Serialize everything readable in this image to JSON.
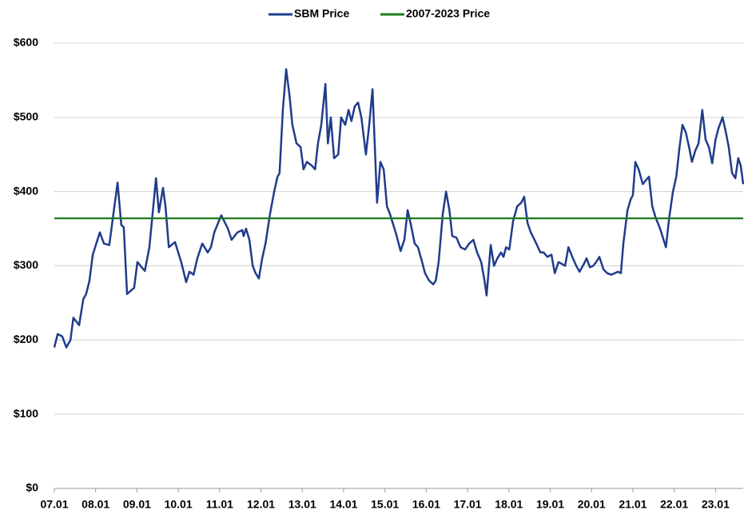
{
  "chart_data": {
    "type": "line",
    "series": [
      {
        "name": "SBM Price",
        "color": "#1f3c8c",
        "x": [
          2007.0,
          2007.08,
          2007.19,
          2007.29,
          2007.39,
          2007.46,
          2007.6,
          2007.7,
          2007.77,
          2007.85,
          2007.93,
          2008.1,
          2008.2,
          2008.33,
          2008.43,
          2008.53,
          2008.62,
          2008.68,
          2008.76,
          2008.88,
          2008.93,
          2009.01,
          2009.19,
          2009.3,
          2009.46,
          2009.53,
          2009.63,
          2009.69,
          2009.77,
          2009.92,
          2010.07,
          2010.19,
          2010.27,
          2010.37,
          2010.46,
          2010.58,
          2010.71,
          2010.79,
          2010.87,
          2011.04,
          2011.2,
          2011.29,
          2011.43,
          2011.55,
          2011.58,
          2011.64,
          2011.72,
          2011.8,
          2011.87,
          2011.95,
          2012.03,
          2012.11,
          2012.22,
          2012.32,
          2012.4,
          2012.45,
          2012.53,
          2012.61,
          2012.69,
          2012.76,
          2012.86,
          2012.96,
          2013.03,
          2013.11,
          2013.23,
          2013.31,
          2013.38,
          2013.46,
          2013.56,
          2013.62,
          2013.69,
          2013.77,
          2013.87,
          2013.94,
          2014.04,
          2014.12,
          2014.19,
          2014.27,
          2014.35,
          2014.43,
          2014.54,
          2014.62,
          2014.7,
          2014.81,
          2014.89,
          2014.97,
          2015.05,
          2015.12,
          2015.26,
          2015.38,
          2015.47,
          2015.55,
          2015.63,
          2015.72,
          2015.8,
          2015.9,
          2015.97,
          2016.07,
          2016.17,
          2016.23,
          2016.3,
          2016.4,
          2016.48,
          2016.56,
          2016.63,
          2016.73,
          2016.83,
          2016.94,
          2017.04,
          2017.14,
          2017.23,
          2017.33,
          2017.41,
          2017.46,
          2017.56,
          2017.64,
          2017.72,
          2017.81,
          2017.87,
          2017.93,
          2018.01,
          2018.1,
          2018.2,
          2018.3,
          2018.37,
          2018.45,
          2018.53,
          2018.62,
          2018.68,
          2018.76,
          2018.84,
          2018.93,
          2019.03,
          2019.11,
          2019.2,
          2019.3,
          2019.36,
          2019.44,
          2019.55,
          2019.63,
          2019.71,
          2019.81,
          2019.88,
          2019.96,
          2020.04,
          2020.11,
          2020.19,
          2020.29,
          2020.38,
          2020.48,
          2020.56,
          2020.64,
          2020.71,
          2020.77,
          2020.87,
          2020.95,
          2021.0,
          2021.06,
          2021.14,
          2021.24,
          2021.31,
          2021.39,
          2021.47,
          2021.55,
          2021.66,
          2021.8,
          2021.88,
          2021.97,
          2022.05,
          2022.13,
          2022.2,
          2022.28,
          2022.36,
          2022.43,
          2022.51,
          2022.59,
          2022.68,
          2022.76,
          2022.84,
          2022.92,
          2023.0,
          2023.07,
          2023.17,
          2023.25,
          2023.32,
          2023.4,
          2023.48,
          2023.55,
          2023.61,
          2023.67
        ],
        "values": [
          190,
          208,
          205,
          190,
          200,
          230,
          220,
          255,
          262,
          280,
          315,
          345,
          330,
          328,
          370,
          412,
          355,
          352,
          262,
          268,
          270,
          305,
          293,
          325,
          418,
          372,
          405,
          380,
          325,
          332,
          305,
          278,
          292,
          288,
          310,
          330,
          318,
          325,
          345,
          368,
          350,
          335,
          345,
          348,
          340,
          350,
          335,
          300,
          290,
          283,
          310,
          330,
          370,
          400,
          420,
          425,
          510,
          565,
          530,
          490,
          465,
          460,
          430,
          440,
          435,
          430,
          465,
          490,
          545,
          465,
          500,
          445,
          450,
          500,
          490,
          510,
          495,
          515,
          520,
          500,
          450,
          490,
          538,
          385,
          440,
          430,
          380,
          370,
          345,
          320,
          335,
          375,
          355,
          330,
          325,
          305,
          290,
          280,
          275,
          280,
          305,
          370,
          400,
          375,
          340,
          338,
          325,
          322,
          330,
          335,
          318,
          305,
          280,
          260,
          328,
          300,
          310,
          318,
          312,
          325,
          322,
          360,
          380,
          385,
          393,
          358,
          345,
          335,
          328,
          318,
          318,
          312,
          315,
          290,
          305,
          302,
          300,
          325,
          310,
          300,
          292,
          302,
          310,
          298,
          300,
          305,
          312,
          295,
          290,
          288,
          290,
          292,
          290,
          330,
          375,
          390,
          395,
          440,
          430,
          410,
          415,
          420,
          380,
          365,
          350,
          325,
          365,
          400,
          420,
          460,
          490,
          480,
          460,
          440,
          455,
          465,
          510,
          470,
          460,
          438,
          470,
          485,
          500,
          480,
          460,
          425,
          418,
          445,
          435,
          410
        ]
      },
      {
        "name": "2007-2023 Price",
        "color": "#1e7b1e",
        "x": [
          2007.0,
          2023.67
        ],
        "values": [
          364,
          364
        ]
      }
    ],
    "xlim": [
      2007.0,
      2023.67
    ],
    "xticks": [
      {
        "value": 2007,
        "label": "07.01"
      },
      {
        "value": 2008,
        "label": "08.01"
      },
      {
        "value": 2009,
        "label": "09.01"
      },
      {
        "value": 2010,
        "label": "10.01"
      },
      {
        "value": 2011,
        "label": "11.01"
      },
      {
        "value": 2012,
        "label": "12.01"
      },
      {
        "value": 2013,
        "label": "13.01"
      },
      {
        "value": 2014,
        "label": "14.01"
      },
      {
        "value": 2015,
        "label": "15.01"
      },
      {
        "value": 2016,
        "label": "16.01"
      },
      {
        "value": 2017,
        "label": "17.01"
      },
      {
        "value": 2018,
        "label": "18.01"
      },
      {
        "value": 2019,
        "label": "19.01"
      },
      {
        "value": 2020,
        "label": "20.01"
      },
      {
        "value": 2021,
        "label": "21.01"
      },
      {
        "value": 2022,
        "label": "22.01"
      },
      {
        "value": 2023,
        "label": "23.01"
      }
    ],
    "ylim": [
      0,
      600
    ],
    "yticks": [
      {
        "value": 0,
        "label": "$0"
      },
      {
        "value": 100,
        "label": "$100"
      },
      {
        "value": 200,
        "label": "$200"
      },
      {
        "value": 300,
        "label": "$300"
      },
      {
        "value": 400,
        "label": "$400"
      },
      {
        "value": 500,
        "label": "$500"
      },
      {
        "value": 600,
        "label": "$600"
      }
    ],
    "grid": true,
    "legend": "top"
  }
}
